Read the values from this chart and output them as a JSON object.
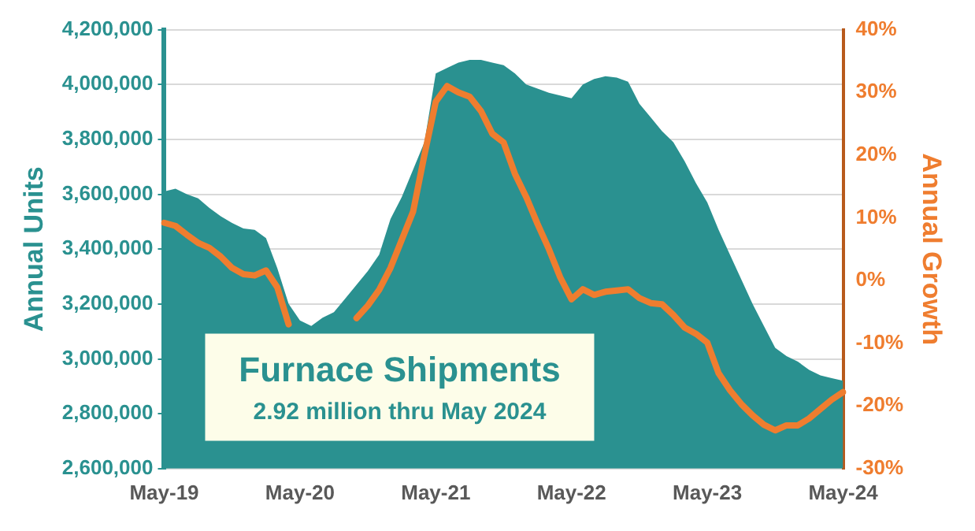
{
  "chart_data": {
    "type": "area",
    "xlabel": null,
    "ylabel": "Annual Units",
    "y2label": "Annual Growth",
    "categories": [
      "May-19",
      null,
      null,
      null,
      null,
      null,
      null,
      null,
      null,
      null,
      null,
      null,
      "May-20",
      null,
      null,
      null,
      null,
      null,
      null,
      null,
      null,
      null,
      null,
      null,
      "May-21",
      null,
      null,
      null,
      null,
      null,
      null,
      null,
      null,
      null,
      null,
      null,
      "May-22",
      null,
      null,
      null,
      null,
      null,
      null,
      null,
      null,
      null,
      null,
      null,
      "May-23",
      null,
      null,
      null,
      null,
      null,
      null,
      null,
      null,
      null,
      null,
      null,
      "May-24"
    ],
    "series": [
      {
        "type": "area",
        "color": "#2a9190",
        "values": [
          3610000,
          3620000,
          3600000,
          3585000,
          3550000,
          3520000,
          3495000,
          3475000,
          3470000,
          3440000,
          3330000,
          3200000,
          3140000,
          3120000,
          3150000,
          3170000,
          3220000,
          3270000,
          3320000,
          3380000,
          3510000,
          3590000,
          3690000,
          3790000,
          4040000,
          4060000,
          4080000,
          4090000,
          4090000,
          4080000,
          4070000,
          4040000,
          4000000,
          3985000,
          3970000,
          3960000,
          3950000,
          4000000,
          4020000,
          4030000,
          4025000,
          4010000,
          3930000,
          3880000,
          3830000,
          3790000,
          3720000,
          3640000,
          3570000,
          3470000,
          3380000,
          3290000,
          3200000,
          3120000,
          3040000,
          3010000,
          2990000,
          2960000,
          2940000,
          2930000,
          2920000
        ]
      },
      {
        "type": "line",
        "axis": "y2",
        "color": "#ef7d2f",
        "values": [
          9.2,
          8.7,
          7.3,
          6.0,
          5.2,
          3.8,
          2.0,
          1.0,
          0.8,
          1.6,
          -1.1,
          -7.0,
          null,
          null,
          null,
          null,
          null,
          -6.0,
          -4.0,
          -1.5,
          2.0,
          6.5,
          11.0,
          20.0,
          28.5,
          31.0,
          30.0,
          29.3,
          27.0,
          23.4,
          22.0,
          17.0,
          13.3,
          9.0,
          5.0,
          0.5,
          -3.0,
          -1.4,
          -2.3,
          -1.8,
          -1.6,
          -1.4,
          -2.8,
          -3.6,
          -3.8,
          -5.5,
          -7.5,
          -8.5,
          -9.9,
          -14.8,
          -17.5,
          -19.7,
          -21.5,
          -23.0,
          -23.9,
          -23.1,
          -23.1,
          -22.0,
          -20.5,
          -19.0,
          -17.8
        ]
      }
    ],
    "ylim": [
      2600000,
      4200000
    ],
    "yticks": [
      {
        "value": 2600000,
        "label": "2,600,000"
      },
      {
        "value": 2800000,
        "label": "2,800,000"
      },
      {
        "value": 3000000,
        "label": "3,000,000"
      },
      {
        "value": 3200000,
        "label": "3,200,000"
      },
      {
        "value": 3400000,
        "label": "3,400,000"
      },
      {
        "value": 3600000,
        "label": "3,600,000"
      },
      {
        "value": 3800000,
        "label": "3,800,000"
      },
      {
        "value": 4000000,
        "label": "4,000,000"
      },
      {
        "value": 4200000,
        "label": "4,200,000"
      }
    ],
    "y2lim": [
      -30,
      40
    ],
    "y2ticks": [
      {
        "value": -30,
        "label": "-30%"
      },
      {
        "value": -20,
        "label": "-20%"
      },
      {
        "value": -10,
        "label": "-10%"
      },
      {
        "value": 0,
        "label": "0%"
      },
      {
        "value": 10,
        "label": "10%"
      },
      {
        "value": 20,
        "label": "20%"
      },
      {
        "value": 30,
        "label": "30%"
      },
      {
        "value": 40,
        "label": "40%"
      }
    ],
    "annotations": [
      "Furnace Shipments",
      "2.92 million thru May 2024"
    ],
    "grid": "y",
    "legend": false,
    "marker": "none",
    "line_style": "solid"
  }
}
